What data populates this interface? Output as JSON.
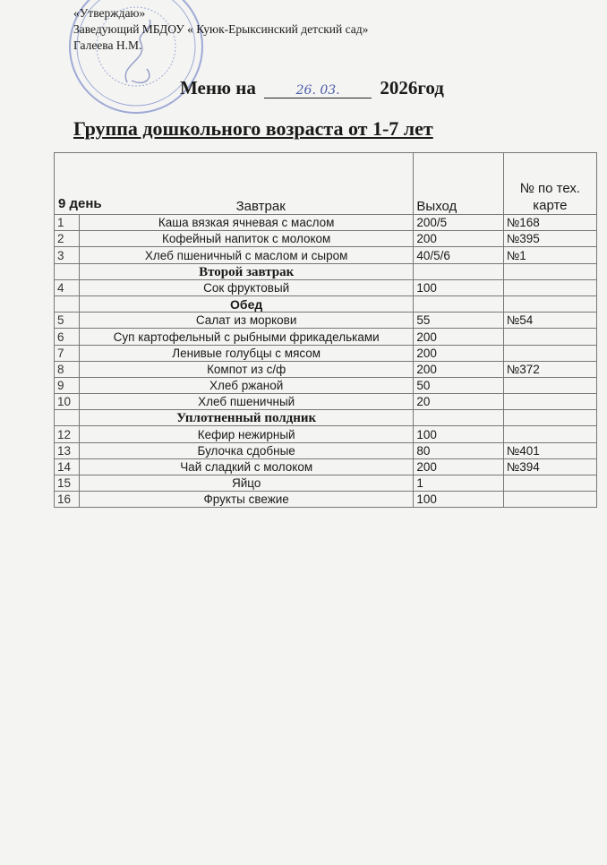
{
  "approval": {
    "line1": "«Утверждаю»",
    "line2": "Заведующий МБДОУ  « Куюк-Ерыксинский  детский сад»",
    "line3": "Галеева Н.М."
  },
  "title": {
    "prefix": "Меню на",
    "date_handwritten": "26. 03.",
    "suffix": "2026год"
  },
  "group": "Группа дошкольного возраста от 1-7 лет",
  "table": {
    "header": {
      "day": "9 день",
      "meal": "Завтрак",
      "output": "Выход",
      "card": "№ по тех. карте"
    },
    "rows": [
      {
        "type": "item",
        "num": "1",
        "name": "Каша вязкая ячневая с маслом",
        "output": "200/5",
        "card": "№168"
      },
      {
        "type": "item",
        "num": "2",
        "name": "Кофейный напиток с молоком",
        "output": "200",
        "card": "№395"
      },
      {
        "type": "item",
        "num": "3",
        "name": "Хлеб пшеничный с маслом и сыром",
        "output": "40/5/6",
        "card": "№1"
      },
      {
        "type": "section",
        "name": "Второй завтрак"
      },
      {
        "type": "item",
        "num": "4",
        "name": "Сок фруктовый",
        "output": "100",
        "card": ""
      },
      {
        "type": "section",
        "name": "Обед",
        "sans": true
      },
      {
        "type": "item",
        "num": "5",
        "name": "Салат из моркови",
        "output": "55",
        "card": "№54"
      },
      {
        "type": "item",
        "num": "6",
        "name": "Суп картофельный с рыбными фрикадельками",
        "output": "200",
        "card": ""
      },
      {
        "type": "item",
        "num": "7",
        "name": "Ленивые голубцы с мясом",
        "output": "200",
        "card": ""
      },
      {
        "type": "item",
        "num": "8",
        "name": "Компот из с/ф",
        "output": "200",
        "card": "№372"
      },
      {
        "type": "item",
        "num": "9",
        "name": "Хлеб ржаной",
        "output": "50",
        "card": ""
      },
      {
        "type": "item",
        "num": "10",
        "name": "Хлеб пшеничный",
        "output": "20",
        "card": ""
      },
      {
        "type": "section",
        "name": "Уплотненный полдник"
      },
      {
        "type": "item",
        "num": "12",
        "name": "Кефир нежирный",
        "output": "100",
        "card": ""
      },
      {
        "type": "item",
        "num": "13",
        "name": "Булочка сдобные",
        "output": "80",
        "card": "№401"
      },
      {
        "type": "item",
        "num": "14",
        "name": "Чай сладкий с молоком",
        "output": "200",
        "card": "№394"
      },
      {
        "type": "item",
        "num": "15",
        "name": "Яйцо",
        "output": "1",
        "card": ""
      },
      {
        "type": "item",
        "num": "16",
        "name": "Фрукты свежие",
        "output": "100",
        "card": ""
      }
    ]
  },
  "colors": {
    "stamp": "#5a6fc0",
    "ink": "#1a1a1a"
  }
}
